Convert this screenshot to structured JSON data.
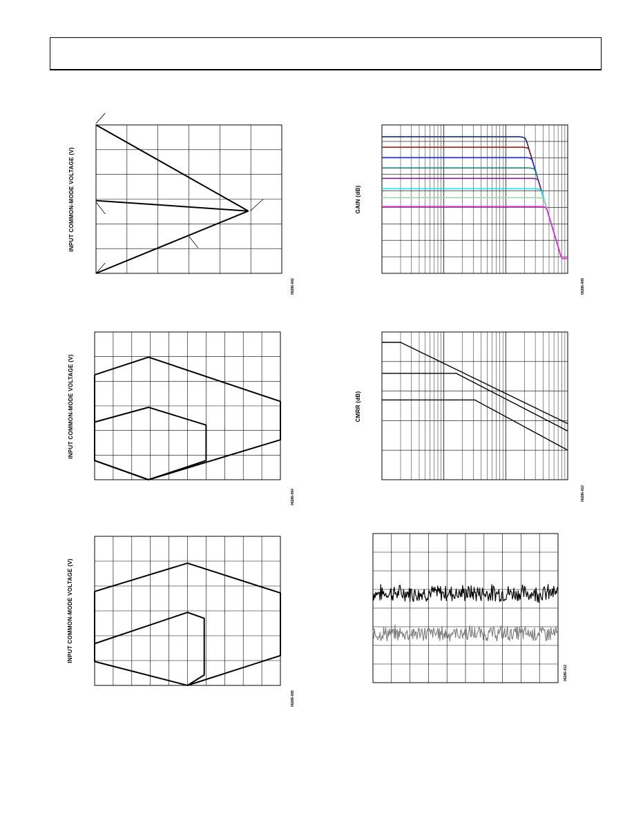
{
  "chart_data": [
    {
      "type": "line",
      "id": "c1",
      "ylabel": "INPUT COMMON-MODE VOLTAGE (V)",
      "figure_id": "06286-002",
      "series": [
        {
          "color": "#000000",
          "points": [
            [
              0,
              1.0
            ],
            [
              0.82,
              0.42
            ]
          ]
        },
        {
          "color": "#000000",
          "points": [
            [
              0,
              0.49
            ],
            [
              0.82,
              0.42
            ]
          ]
        },
        {
          "color": "#000000",
          "points": [
            [
              0,
              0.0
            ],
            [
              0.82,
              0.42
            ]
          ]
        }
      ],
      "annotations": [
        {
          "from": [
            0.05,
            1.08
          ],
          "to": [
            0.0,
            1.01
          ]
        },
        {
          "from": [
            0.05,
            0.4
          ],
          "to": [
            0.0,
            0.48
          ]
        },
        {
          "from": [
            0.05,
            0.07
          ],
          "to": [
            0.0,
            0.0
          ]
        },
        {
          "from": [
            0.9,
            0.5
          ],
          "to": [
            0.83,
            0.42
          ]
        },
        {
          "from": [
            0.55,
            0.17
          ],
          "to": [
            0.5,
            0.25
          ]
        }
      ]
    },
    {
      "type": "line",
      "id": "c3",
      "ylabel": "INPUT COMMON-MODE VOLTAGE (V)",
      "figure_id": "06286-004",
      "series": [
        {
          "color": "#000000",
          "points": [
            [
              0,
              0.71
            ],
            [
              0.29,
              0.83
            ],
            [
              1.0,
              0.53
            ],
            [
              1.0,
              0.27
            ],
            [
              0.29,
              0.0
            ],
            [
              0,
              0.13
            ],
            [
              0,
              0.71
            ]
          ]
        },
        {
          "color": "#000000",
          "points": [
            [
              0,
              0.39
            ],
            [
              0.29,
              0.49
            ],
            [
              0.6,
              0.37
            ],
            [
              0.6,
              0.13
            ],
            [
              0.29,
              0.0
            ],
            [
              0,
              0.13
            ],
            [
              0,
              0.39
            ]
          ]
        }
      ]
    },
    {
      "type": "line",
      "id": "c5",
      "ylabel": "INPUT COMMON-MODE VOLTAGE (V)",
      "figure_id": "06286-005",
      "series": [
        {
          "color": "#000000",
          "points": [
            [
              0,
              0.63
            ],
            [
              0.5,
              0.82
            ],
            [
              1.0,
              0.62
            ],
            [
              1.0,
              0.2
            ],
            [
              0.5,
              0.0
            ],
            [
              0,
              0.16
            ],
            [
              0,
              0.63
            ]
          ]
        },
        {
          "color": "#000000",
          "points": [
            [
              0,
              0.28
            ],
            [
              0.5,
              0.49
            ],
            [
              0.59,
              0.45
            ],
            [
              0.59,
              0.07
            ],
            [
              0.5,
              0.0
            ]
          ]
        }
      ]
    },
    {
      "type": "line",
      "id": "c2",
      "ylabel": "GAIN (dB)",
      "figure_id": "06286-009",
      "xscale": "log",
      "series": [
        {
          "color": "#1a237e",
          "level": 0.92
        },
        {
          "color": "#8b1a1a",
          "level": 0.85
        },
        {
          "color": "#1f2ee8",
          "level": 0.78
        },
        {
          "color": "#1b7f7f",
          "level": 0.71
        },
        {
          "color": "#7b1f8b",
          "level": 0.64
        },
        {
          "color": "#00e5ee",
          "level": 0.57
        },
        {
          "color": "#9fd4b0",
          "level": 0.51
        },
        {
          "color": "#ee22dd",
          "level": 0.45
        }
      ]
    },
    {
      "type": "line",
      "id": "c4",
      "ylabel": "CMRR (dB)",
      "figure_id": "06286-010",
      "xscale": "log",
      "series": [
        {
          "color": "#000000",
          "level": 0.93,
          "knee": 0.1
        },
        {
          "color": "#000000",
          "level": 0.72,
          "knee": 0.4
        },
        {
          "color": "#000000",
          "level": 0.54,
          "knee": 0.5
        }
      ]
    },
    {
      "type": "line",
      "id": "c6",
      "ylabel": "",
      "figure_id": "06286-012",
      "series": [
        {
          "color": "#000000",
          "mean": 0.6,
          "amp": 0.05
        },
        {
          "color": "#808080",
          "mean": 0.33,
          "amp": 0.045
        }
      ]
    }
  ]
}
